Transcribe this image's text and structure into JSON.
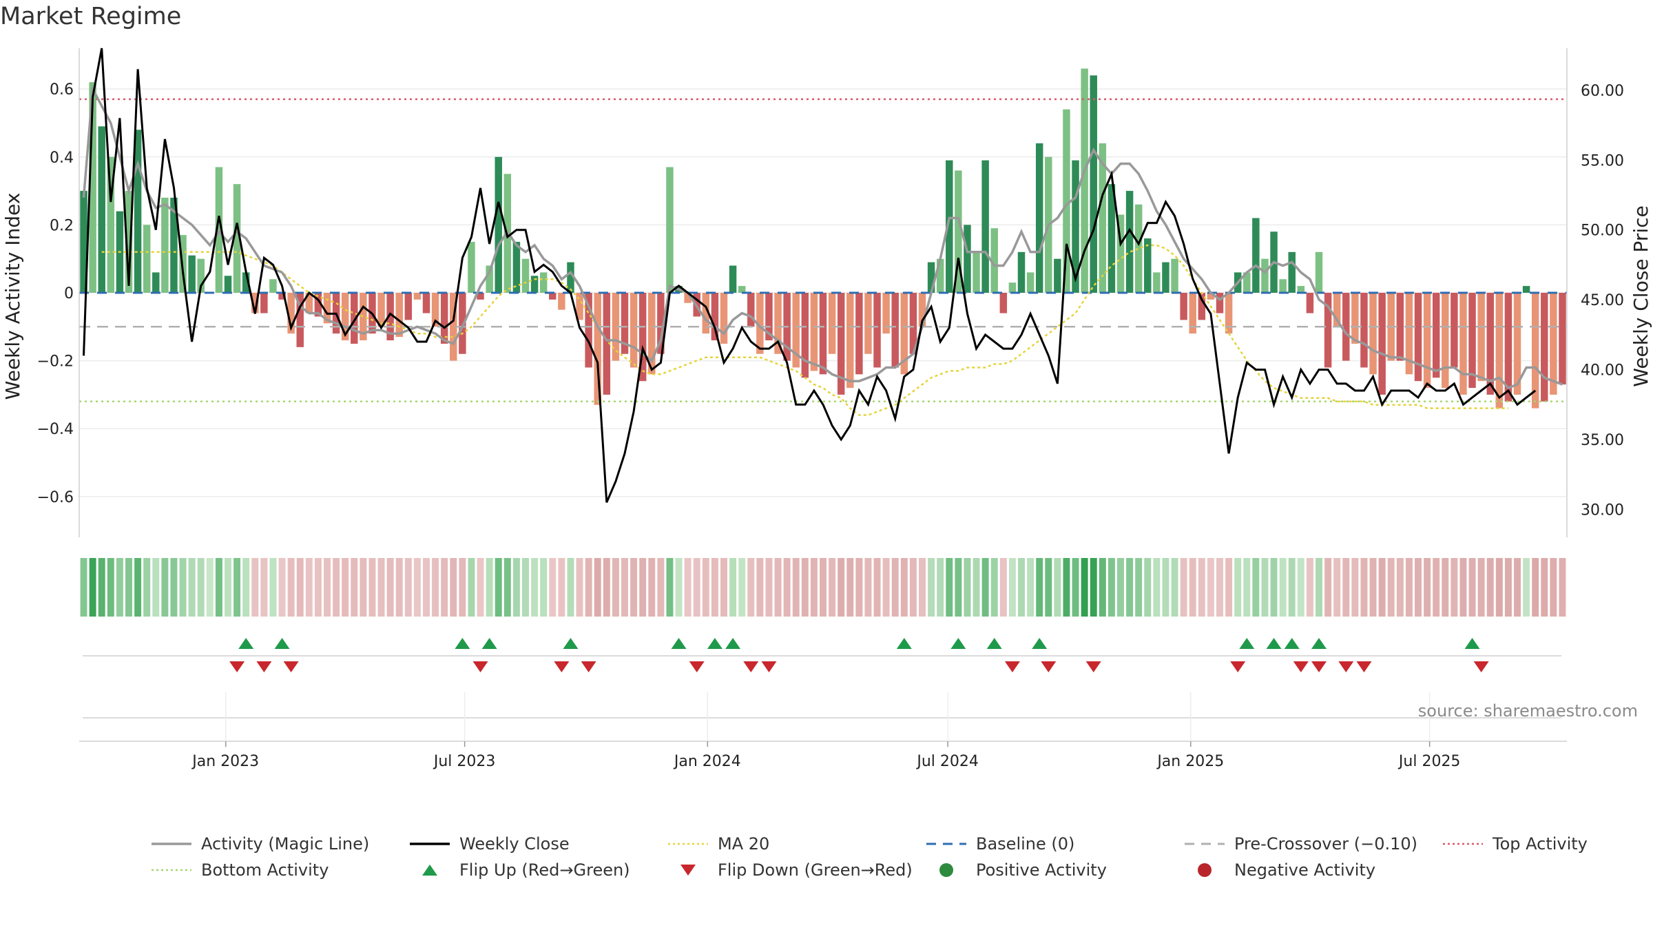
{
  "title": "Market Regime",
  "source": "source: sharemaestro.com",
  "colors": {
    "activity_line": "#999999",
    "close_line": "#000000",
    "ma20": "#e6d33a",
    "baseline": "#2f6db0",
    "precrossover": "#b0b0b0",
    "top_activity": "#d9576b",
    "bottom_activity": "#a8d672",
    "flip_up": "#1f9a4a",
    "flip_down": "#c8272d",
    "positive": "#2e8b3d",
    "negative": "#b8262b"
  },
  "chart_data": {
    "type": "bar",
    "title": "Market Regime",
    "y_left_label": "Weekly Activity Index",
    "y_right_label": "Weekly Close Price",
    "y_left_ticks": [
      "0.6",
      "0.4",
      "0.2",
      "0",
      "−0.2",
      "−0.4",
      "−0.6"
    ],
    "y_right_ticks": [
      "60.00",
      "55.00",
      "50.00",
      "45.00",
      "40.00",
      "35.00",
      "30.00"
    ],
    "y_left_range": [
      -0.72,
      0.72
    ],
    "y_right_range": [
      28.0,
      63.0
    ],
    "x_range": [
      "2022-09-12",
      "2025-10-13"
    ],
    "x_tick_labels": [
      "Jan 2023",
      "Jul 2023",
      "Jan 2024",
      "Jul 2024",
      "Jan 2025",
      "Jul 2025"
    ],
    "x_tick_dates": [
      "2023-01-01",
      "2023-07-01",
      "2024-01-01",
      "2024-07-01",
      "2025-01-01",
      "2025-07-01"
    ],
    "start_date": "2022-09-12",
    "reference_lines": {
      "top_activity": 0.57,
      "bottom_activity": -0.32,
      "pre_crossover": -0.1,
      "baseline": 0.0,
      "ma20_level": 0.12
    },
    "activity_bars": [
      0.3,
      0.62,
      0.49,
      0.4,
      0.24,
      0.3,
      0.48,
      0.2,
      0.06,
      0.28,
      0.28,
      0.17,
      0.11,
      0.1,
      0.0,
      0.37,
      0.05,
      0.32,
      0.06,
      -0.06,
      -0.06,
      0.04,
      -0.02,
      -0.12,
      -0.16,
      -0.06,
      -0.07,
      -0.09,
      -0.12,
      -0.14,
      -0.15,
      -0.14,
      -0.12,
      -0.1,
      -0.14,
      -0.13,
      -0.08,
      -0.02,
      -0.06,
      -0.1,
      -0.15,
      -0.2,
      -0.18,
      0.15,
      -0.02,
      0.08,
      0.4,
      0.35,
      0.15,
      0.1,
      0.05,
      0.06,
      -0.02,
      -0.05,
      0.09,
      -0.08,
      -0.22,
      -0.33,
      -0.3,
      -0.2,
      -0.18,
      -0.22,
      -0.26,
      -0.24,
      -0.18,
      0.37,
      0.02,
      -0.03,
      -0.07,
      -0.12,
      -0.14,
      -0.15,
      0.08,
      0.02,
      -0.1,
      -0.18,
      -0.14,
      -0.18,
      -0.2,
      -0.22,
      -0.25,
      -0.23,
      -0.24,
      -0.18,
      -0.3,
      -0.28,
      -0.24,
      -0.18,
      -0.22,
      -0.12,
      -0.22,
      -0.24,
      -0.18,
      -0.1,
      0.09,
      0.1,
      0.39,
      0.36,
      0.2,
      0.12,
      0.39,
      0.19,
      -0.06,
      0.03,
      0.12,
      0.06,
      0.44,
      0.4,
      0.1,
      0.54,
      0.39,
      0.66,
      0.64,
      0.44,
      0.32,
      0.23,
      0.3,
      0.26,
      0.16,
      0.06,
      0.09,
      0.1,
      -0.08,
      -0.12,
      -0.08,
      -0.02,
      -0.06,
      -0.12,
      0.06,
      0.06,
      0.22,
      0.1,
      0.18,
      0.04,
      0.12,
      0.02,
      -0.06,
      0.12,
      -0.22,
      -0.1,
      -0.2,
      -0.15,
      -0.22,
      -0.24,
      -0.3,
      -0.2,
      -0.2,
      -0.24,
      -0.26,
      -0.28,
      -0.25,
      -0.28,
      -0.22,
      -0.3,
      -0.28,
      -0.26,
      -0.3,
      -0.34,
      -0.32,
      -0.3,
      0.02,
      -0.34,
      -0.32,
      -0.3,
      -0.27
    ],
    "activity_line": [
      0.28,
      0.6,
      0.55,
      0.5,
      0.4,
      0.3,
      0.38,
      0.3,
      0.25,
      0.26,
      0.24,
      0.22,
      0.2,
      0.17,
      0.14,
      0.18,
      0.15,
      0.18,
      0.16,
      0.12,
      0.08,
      0.07,
      0.06,
      0.02,
      -0.04,
      -0.06,
      -0.06,
      -0.08,
      -0.09,
      -0.1,
      -0.11,
      -0.12,
      -0.11,
      -0.11,
      -0.12,
      -0.12,
      -0.11,
      -0.1,
      -0.11,
      -0.12,
      -0.14,
      -0.15,
      -0.1,
      -0.04,
      0.02,
      0.06,
      0.14,
      0.18,
      0.14,
      0.12,
      0.14,
      0.1,
      0.08,
      0.04,
      0.06,
      0.02,
      -0.04,
      -0.1,
      -0.14,
      -0.14,
      -0.15,
      -0.16,
      -0.18,
      -0.2,
      -0.14,
      0.02,
      0.01,
      0.0,
      -0.04,
      -0.08,
      -0.1,
      -0.12,
      -0.08,
      -0.06,
      -0.07,
      -0.1,
      -0.12,
      -0.14,
      -0.16,
      -0.18,
      -0.2,
      -0.21,
      -0.22,
      -0.24,
      -0.25,
      -0.26,
      -0.26,
      -0.25,
      -0.24,
      -0.22,
      -0.22,
      -0.2,
      -0.18,
      -0.1,
      0.0,
      0.1,
      0.22,
      0.22,
      0.12,
      0.12,
      0.12,
      0.08,
      0.08,
      0.12,
      0.18,
      0.12,
      0.12,
      0.2,
      0.22,
      0.26,
      0.28,
      0.36,
      0.42,
      0.38,
      0.35,
      0.38,
      0.38,
      0.35,
      0.3,
      0.24,
      0.2,
      0.15,
      0.1,
      0.07,
      0.04,
      0.0,
      -0.02,
      0.0,
      0.03,
      0.06,
      0.08,
      0.06,
      0.09,
      0.08,
      0.09,
      0.06,
      0.04,
      -0.02,
      -0.04,
      -0.08,
      -0.12,
      -0.14,
      -0.15,
      -0.17,
      -0.18,
      -0.19,
      -0.19,
      -0.2,
      -0.21,
      -0.22,
      -0.23,
      -0.22,
      -0.22,
      -0.24,
      -0.24,
      -0.25,
      -0.26,
      -0.25,
      -0.28,
      -0.27,
      -0.22,
      -0.22,
      -0.25,
      -0.26,
      -0.27
    ],
    "weekly_close": [
      41.0,
      59.5,
      63.0,
      52.0,
      58.0,
      46.0,
      61.5,
      53.0,
      50.0,
      56.5,
      53.0,
      47.0,
      42.0,
      46.0,
      47.0,
      51.0,
      47.5,
      50.5,
      47.0,
      44.0,
      48.0,
      47.5,
      46.0,
      43.0,
      44.5,
      45.5,
      45.0,
      44.0,
      44.0,
      42.5,
      43.5,
      44.5,
      44.0,
      43.0,
      44.0,
      43.5,
      43.0,
      42.0,
      42.0,
      43.5,
      43.0,
      43.5,
      48.0,
      49.5,
      53.0,
      49.0,
      52.0,
      49.5,
      50.0,
      50.0,
      47.0,
      47.5,
      47.0,
      46.0,
      45.5,
      43.0,
      42.0,
      40.5,
      30.5,
      32.0,
      34.0,
      37.0,
      41.5,
      40.0,
      40.5,
      45.5,
      46.0,
      45.5,
      45.0,
      44.5,
      43.0,
      40.5,
      41.5,
      43.0,
      42.0,
      41.5,
      41.5,
      42.0,
      40.5,
      37.5,
      37.5,
      38.5,
      37.5,
      36.0,
      35.0,
      36.0,
      38.5,
      37.5,
      39.5,
      38.5,
      36.5,
      39.5,
      40.0,
      43.5,
      44.5,
      42.0,
      43.0,
      48.0,
      44.0,
      41.5,
      42.5,
      42.0,
      41.5,
      41.5,
      42.5,
      44.0,
      42.5,
      41.0,
      39.0,
      49.0,
      46.5,
      48.5,
      50.0,
      52.5,
      54.0,
      49.0,
      50.0,
      49.0,
      50.5,
      50.5,
      52.0,
      51.0,
      49.0,
      46.5,
      45.0,
      44.0,
      39.0,
      34.0,
      38.0,
      40.5,
      40.0,
      40.0,
      37.5,
      39.5,
      38.0,
      40.0,
      39.0,
      40.0,
      40.0,
      39.0,
      39.0,
      38.5,
      38.5,
      39.5,
      37.5,
      38.5,
      38.5,
      38.5,
      38.0,
      39.0,
      38.5,
      38.5,
      39.0,
      37.5,
      38.0,
      38.5,
      39.0,
      38.0,
      38.5,
      37.5,
      38.0,
      38.5
    ],
    "ma20": [
      null,
      null,
      0.12,
      0.12,
      0.12,
      0.12,
      0.12,
      0.12,
      0.12,
      0.12,
      0.12,
      0.12,
      0.12,
      0.12,
      0.12,
      0.12,
      0.12,
      0.12,
      0.11,
      0.1,
      0.09,
      0.08,
      0.06,
      0.04,
      0.02,
      0.0,
      -0.01,
      -0.02,
      -0.03,
      -0.05,
      -0.06,
      -0.07,
      -0.08,
      -0.09,
      -0.09,
      -0.1,
      -0.11,
      -0.12,
      -0.12,
      -0.13,
      -0.13,
      -0.13,
      -0.12,
      -0.1,
      -0.07,
      -0.04,
      -0.01,
      0.01,
      0.02,
      0.03,
      0.04,
      0.04,
      0.04,
      0.03,
      0.01,
      -0.02,
      -0.06,
      -0.1,
      -0.14,
      -0.17,
      -0.19,
      -0.21,
      -0.23,
      -0.24,
      -0.24,
      -0.23,
      -0.22,
      -0.21,
      -0.2,
      -0.19,
      -0.19,
      -0.19,
      -0.19,
      -0.19,
      -0.19,
      -0.19,
      -0.2,
      -0.21,
      -0.22,
      -0.23,
      -0.25,
      -0.27,
      -0.28,
      -0.3,
      -0.31,
      -0.34,
      -0.36,
      -0.36,
      -0.35,
      -0.34,
      -0.33,
      -0.31,
      -0.29,
      -0.27,
      -0.25,
      -0.24,
      -0.23,
      -0.23,
      -0.22,
      -0.22,
      -0.22,
      -0.21,
      -0.21,
      -0.2,
      -0.18,
      -0.16,
      -0.14,
      -0.12,
      -0.1,
      -0.08,
      -0.06,
      -0.02,
      0.02,
      0.05,
      0.08,
      0.1,
      0.12,
      0.13,
      0.14,
      0.14,
      0.13,
      0.11,
      0.08,
      0.04,
      0.0,
      -0.04,
      -0.08,
      -0.12,
      -0.16,
      -0.2,
      -0.23,
      -0.26,
      -0.28,
      -0.29,
      -0.3,
      -0.31,
      -0.31,
      -0.31,
      -0.31,
      -0.32,
      -0.32,
      -0.32,
      -0.32,
      -0.33,
      -0.33,
      -0.33,
      -0.33,
      -0.33,
      -0.33,
      -0.34,
      -0.34,
      -0.34,
      -0.34,
      -0.34,
      -0.34,
      -0.34,
      -0.34,
      -0.34,
      -0.34
    ],
    "flip_up_weeks": [
      18,
      22,
      42,
      45,
      54,
      66,
      70,
      72,
      91,
      97,
      101,
      106,
      129,
      132,
      134,
      137,
      154
    ],
    "flip_down_weeks": [
      17,
      20,
      23,
      44,
      53,
      56,
      68,
      74,
      76,
      103,
      107,
      112,
      128,
      135,
      137,
      140,
      142,
      155
    ],
    "legend": [
      {
        "label": "Activity (Magic Line)",
        "style": "solid",
        "color": "#999999"
      },
      {
        "label": "Weekly Close",
        "style": "solid",
        "color": "#000000"
      },
      {
        "label": "MA 20",
        "style": "dotted",
        "color": "#e6d33a"
      },
      {
        "label": "Baseline (0)",
        "style": "dashed",
        "color": "#2f6db0"
      },
      {
        "label": "Pre-Crossover (−0.10)",
        "style": "dashed",
        "color": "#b0b0b0"
      },
      {
        "label": "Top Activity",
        "style": "dotted",
        "color": "#d9576b"
      },
      {
        "label": "Bottom Activity",
        "style": "dotted",
        "color": "#a8d672"
      },
      {
        "label": "Flip Up (Red→Green)",
        "style": "triangle-up",
        "color": "#1f9a4a"
      },
      {
        "label": "Flip Down (Green→Red)",
        "style": "triangle-down",
        "color": "#c8272d"
      },
      {
        "label": "Positive Activity",
        "style": "circle",
        "color": "#2e8b3d"
      },
      {
        "label": "Negative Activity",
        "style": "circle",
        "color": "#b8262b"
      }
    ]
  }
}
